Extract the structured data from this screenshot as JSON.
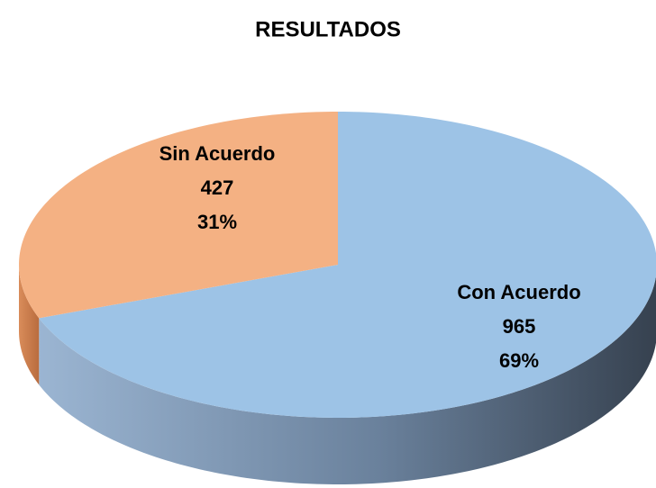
{
  "chart_data": {
    "type": "pie",
    "title": "RESULTADOS",
    "categories": [
      "Con Acuerdo",
      "Sin Acuerdo"
    ],
    "values": [
      965,
      427
    ],
    "percent_labels": [
      "69%",
      "31%"
    ],
    "colors": [
      "#9dc3e6",
      "#f4b183"
    ]
  }
}
